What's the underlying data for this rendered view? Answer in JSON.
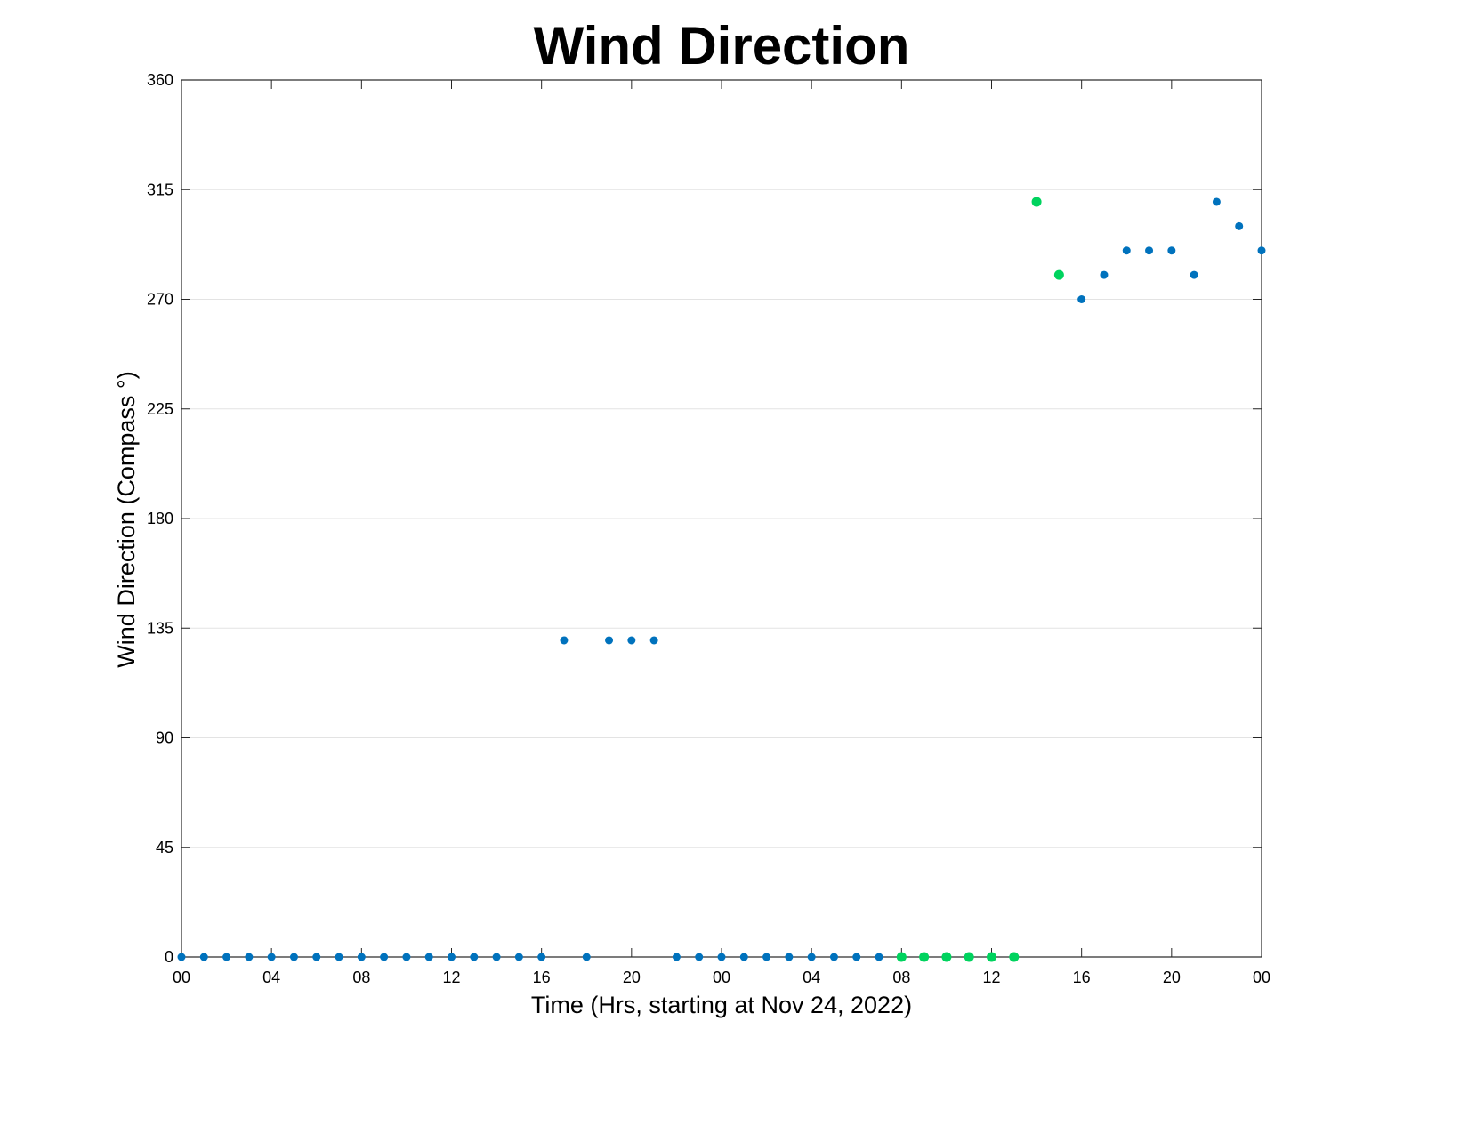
{
  "chart_data": {
    "type": "scatter",
    "title": "Wind Direction",
    "xlabel": "Time (Hrs, starting at Nov 24, 2022)",
    "ylabel": "Wind Direction (Compass °)",
    "xlim": [
      0,
      48
    ],
    "ylim": [
      0,
      360
    ],
    "grid": true,
    "x_tick_labels": [
      {
        "hour": 0,
        "label": "00"
      },
      {
        "hour": 4,
        "label": "04"
      },
      {
        "hour": 8,
        "label": "08"
      },
      {
        "hour": 12,
        "label": "12"
      },
      {
        "hour": 16,
        "label": "16"
      },
      {
        "hour": 20,
        "label": "20"
      },
      {
        "hour": 24,
        "label": "00"
      },
      {
        "hour": 28,
        "label": "04"
      },
      {
        "hour": 32,
        "label": "08"
      },
      {
        "hour": 36,
        "label": "12"
      },
      {
        "hour": 40,
        "label": "16"
      },
      {
        "hour": 44,
        "label": "20"
      },
      {
        "hour": 48,
        "label": "00"
      }
    ],
    "y_ticks": [
      0,
      45,
      90,
      135,
      180,
      225,
      270,
      315,
      360
    ],
    "series": [
      {
        "color": "#0072BD",
        "points": [
          [
            0,
            0
          ],
          [
            1,
            0
          ],
          [
            2,
            0
          ],
          [
            3,
            0
          ],
          [
            4,
            0
          ],
          [
            5,
            0
          ],
          [
            6,
            0
          ],
          [
            7,
            0
          ],
          [
            8,
            0
          ],
          [
            9,
            0
          ],
          [
            10,
            0
          ],
          [
            11,
            0
          ],
          [
            12,
            0
          ],
          [
            13,
            0
          ],
          [
            14,
            0
          ],
          [
            15,
            0
          ],
          [
            16,
            0
          ],
          [
            17,
            130
          ],
          [
            18,
            0
          ],
          [
            19,
            130
          ],
          [
            20,
            130
          ],
          [
            21,
            130
          ],
          [
            22,
            0
          ],
          [
            23,
            0
          ],
          [
            24,
            0
          ],
          [
            25,
            0
          ],
          [
            26,
            0
          ],
          [
            27,
            0
          ],
          [
            28,
            0
          ],
          [
            29,
            0
          ],
          [
            30,
            0
          ],
          [
            31,
            0
          ],
          [
            40,
            270
          ],
          [
            41,
            280
          ],
          [
            42,
            290
          ],
          [
            43,
            290
          ],
          [
            44,
            290
          ],
          [
            45,
            280
          ],
          [
            46,
            310
          ],
          [
            47,
            300
          ],
          [
            48,
            290
          ]
        ]
      },
      {
        "color": "#00D35E",
        "points": [
          [
            32,
            0
          ],
          [
            33,
            0
          ],
          [
            34,
            0
          ],
          [
            35,
            0
          ],
          [
            36,
            0
          ],
          [
            37,
            0
          ],
          [
            38,
            310
          ],
          [
            39,
            280
          ]
        ]
      }
    ]
  }
}
